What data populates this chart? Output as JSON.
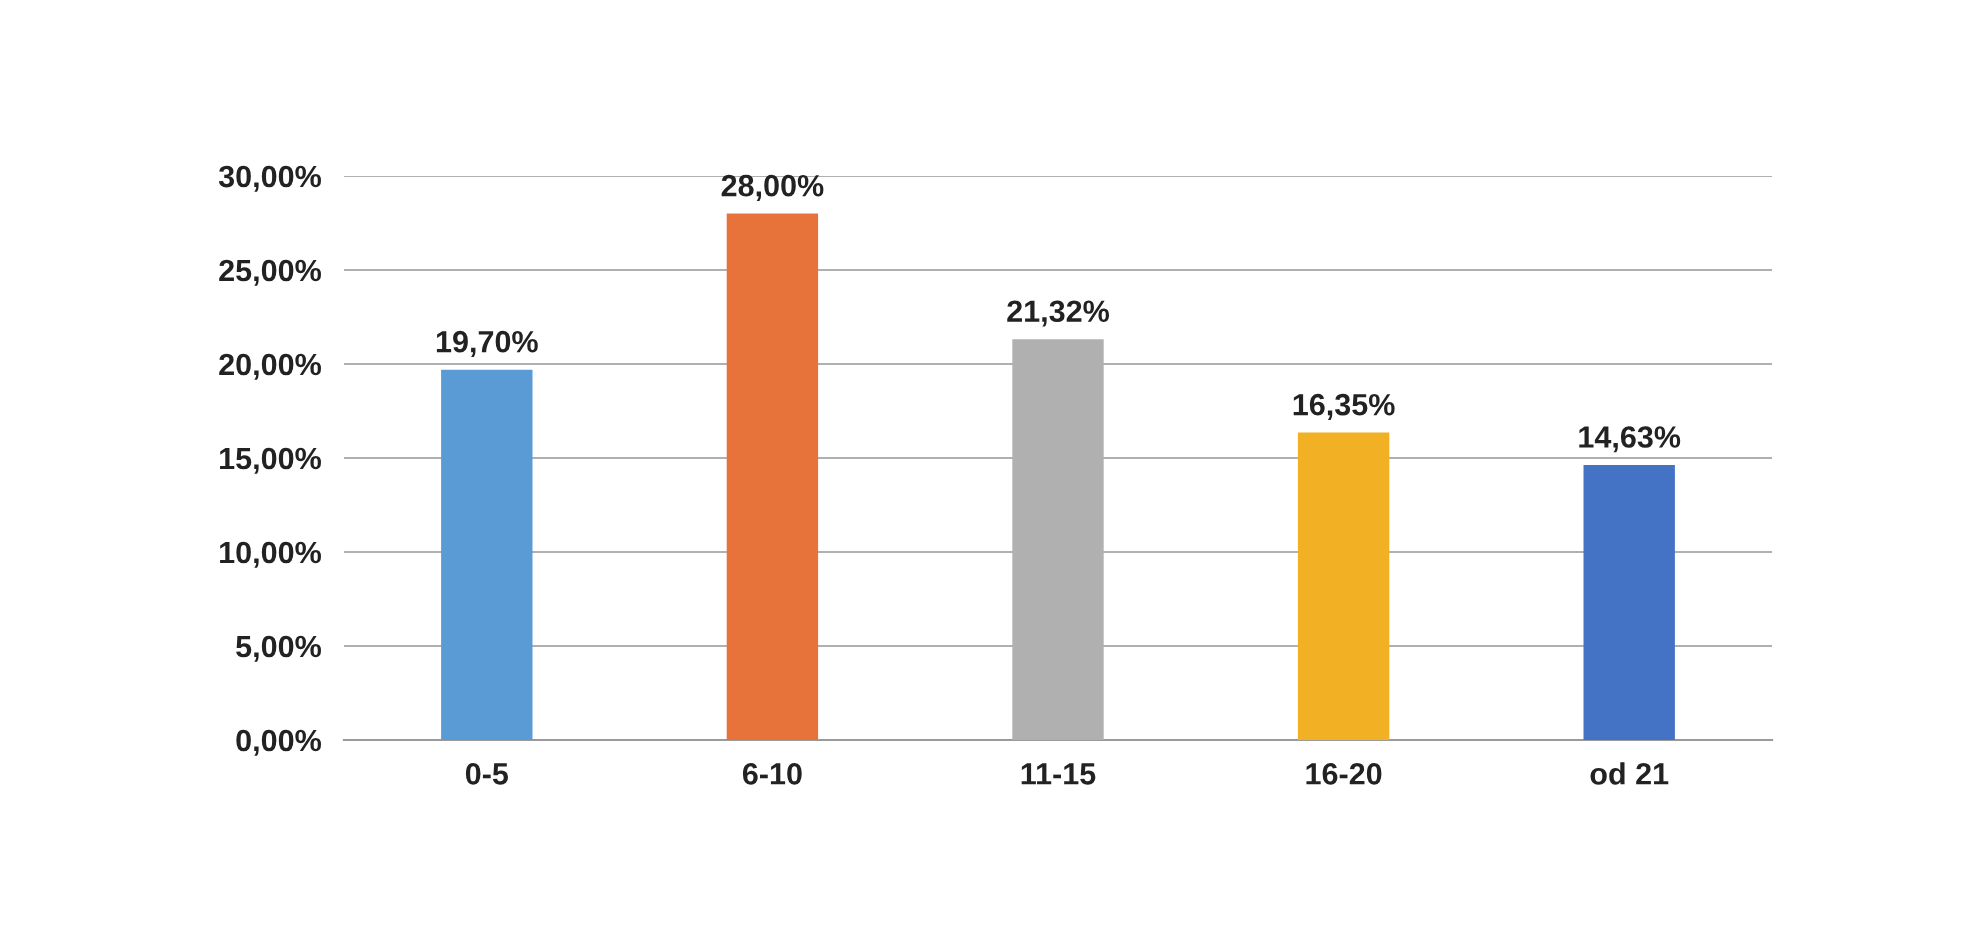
{
  "chart_data": {
    "type": "bar",
    "categories": [
      "0-5",
      "6-10",
      "11-15",
      "16-20",
      "od 21"
    ],
    "values": [
      19.7,
      28.0,
      21.32,
      16.35,
      14.63
    ],
    "colors": [
      "#5b9bd5",
      "#e8733a",
      "#b0b0b0",
      "#f2b124",
      "#4472c4"
    ],
    "value_labels": [
      "19,70%",
      "28,00%",
      "21,32%",
      "16,35%",
      "14,63%"
    ],
    "ylim": [
      0,
      30
    ],
    "yticks": [
      {
        "value": 0,
        "label": "0,00%"
      },
      {
        "value": 5,
        "label": "5,00%"
      },
      {
        "value": 10,
        "label": "10,00%"
      },
      {
        "value": 15,
        "label": "15,00%"
      },
      {
        "value": 20,
        "label": "20,00%"
      },
      {
        "value": 25,
        "label": "25,00%"
      },
      {
        "value": 30,
        "label": "30,00%"
      }
    ],
    "grid": "y"
  }
}
